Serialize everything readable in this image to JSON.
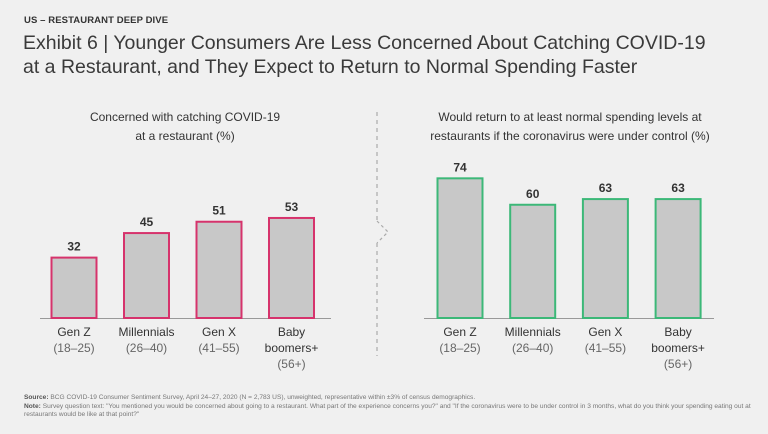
{
  "header": {
    "kicker": "US – RESTAURANT DEEP DIVE",
    "title_line1": "Exhibit 6 | Younger Consumers Are Less Concerned About Catching COVID-19",
    "title_line2": "at a Restaurant, and They Expect to Return to Normal Spending Faster"
  },
  "colors": {
    "bar_fill": "#c8c8c8",
    "left_outline": "#d6336c",
    "right_outline": "#3cb878",
    "axis": "#999999",
    "divider": "#aaaaaa"
  },
  "chart_data": [
    {
      "type": "bar",
      "title": "Concerned with catching COVID-19 at a restaurant (%)",
      "title_lines": [
        "Concerned with catching COVID-19",
        "at a restaurant (%)"
      ],
      "categories": [
        "Gen Z",
        "Millennials",
        "Gen X",
        "Baby boomers+"
      ],
      "category_lines": [
        [
          "Gen Z"
        ],
        [
          "Millennials"
        ],
        [
          "Gen X"
        ],
        [
          "Baby",
          "boomers+"
        ]
      ],
      "sublabels": [
        "(18–25)",
        "(26–40)",
        "(41–55)",
        "(56+)"
      ],
      "values": [
        32,
        45,
        51,
        53
      ],
      "xlabel": "",
      "ylabel": "",
      "ylim": [
        0,
        80
      ],
      "grid": false
    },
    {
      "type": "bar",
      "title": "Would return to at least normal spending levels at restaurants if the coronavirus were under control (%)",
      "title_lines": [
        "Would return to at least normal spending levels at",
        "restaurants if the coronavirus were under control (%)"
      ],
      "categories": [
        "Gen Z",
        "Millennials",
        "Gen X",
        "Baby boomers+"
      ],
      "category_lines": [
        [
          "Gen Z"
        ],
        [
          "Millennials"
        ],
        [
          "Gen X"
        ],
        [
          "Baby",
          "boomers+"
        ]
      ],
      "sublabels": [
        "(18–25)",
        "(26–40)",
        "(41–55)",
        "(56+)"
      ],
      "values": [
        74,
        60,
        63,
        63
      ],
      "xlabel": "",
      "ylabel": "",
      "ylim": [
        0,
        80
      ],
      "grid": false
    }
  ],
  "footer": {
    "source_label": "Source:",
    "source_text": " BCG COVID-19 Consumer Sentiment Survey, April 24–27, 2020 (N = 2,783 US), unweighted, representative within ±3% of census demographics.",
    "note_label": "Note:",
    "note_text": " Survey question text: \"You mentioned you would be concerned about going to a restaurant. What part of the experience concerns you?\" and \"If the coronavirus were to be under control in 3 months, what do you think your spending eating out at restaurants would be like at that point?\""
  }
}
